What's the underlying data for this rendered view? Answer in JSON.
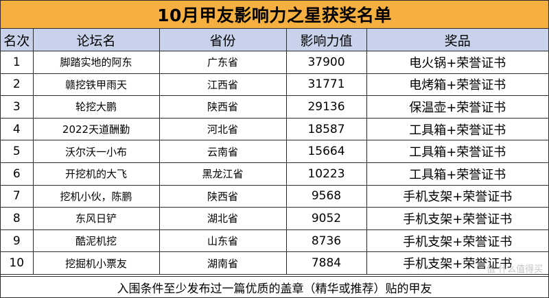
{
  "title": "10月甲友影响力之星获奖名单",
  "headers": {
    "rank": "名次",
    "forum": "论坛名",
    "province": "省份",
    "influence": "影响力值",
    "prize": "奖品"
  },
  "rows": [
    {
      "rank": "1",
      "forum": "脚踏实地的阿东",
      "province": "广东省",
      "influence": "37900",
      "prize": "电火锅+荣誉证书"
    },
    {
      "rank": "2",
      "forum": "赣挖铁甲雨天",
      "province": "江西省",
      "influence": "31771",
      "prize": "电烤箱+荣誉证书"
    },
    {
      "rank": "3",
      "forum": "轮挖大鹏",
      "province": "陕西省",
      "influence": "29136",
      "prize": "保温壶+荣誉证书"
    },
    {
      "rank": "4",
      "forum": "2022天道酬勤",
      "province": "河北省",
      "influence": "18587",
      "prize": "工具箱+荣誉证书"
    },
    {
      "rank": "5",
      "forum": "沃尔沃一小布",
      "province": "云南省",
      "influence": "15664",
      "prize": "工具箱+荣誉证书"
    },
    {
      "rank": "6",
      "forum": "开挖机的大飞",
      "province": "黑龙江省",
      "influence": "10223",
      "prize": "工具箱+荣誉证书"
    },
    {
      "rank": "7",
      "forum": "挖机小伙，陈鹏",
      "province": "陕西省",
      "influence": "9568",
      "prize": "手机支架+荣誉证书"
    },
    {
      "rank": "8",
      "forum": "东风日铲",
      "province": "湖北省",
      "influence": "9052",
      "prize": "手机支架+荣誉证书"
    },
    {
      "rank": "9",
      "forum": "酷泥机挖",
      "province": "山东省",
      "influence": "8736",
      "prize": "手机支架+荣誉证书"
    },
    {
      "rank": "10",
      "forum": "挖掘机小票友",
      "province": "湖南省",
      "influence": "7884",
      "prize": "手机支架+荣誉证书"
    }
  ],
  "footer": "入围条件至少发布过一篇优质的盖章（精华或推荐）贴的甲友",
  "watermark": "值 什么值得买",
  "colors": {
    "title_bg": "#f5b041",
    "header_bg": "#c8d2ea",
    "border": "#2b2b2b"
  }
}
